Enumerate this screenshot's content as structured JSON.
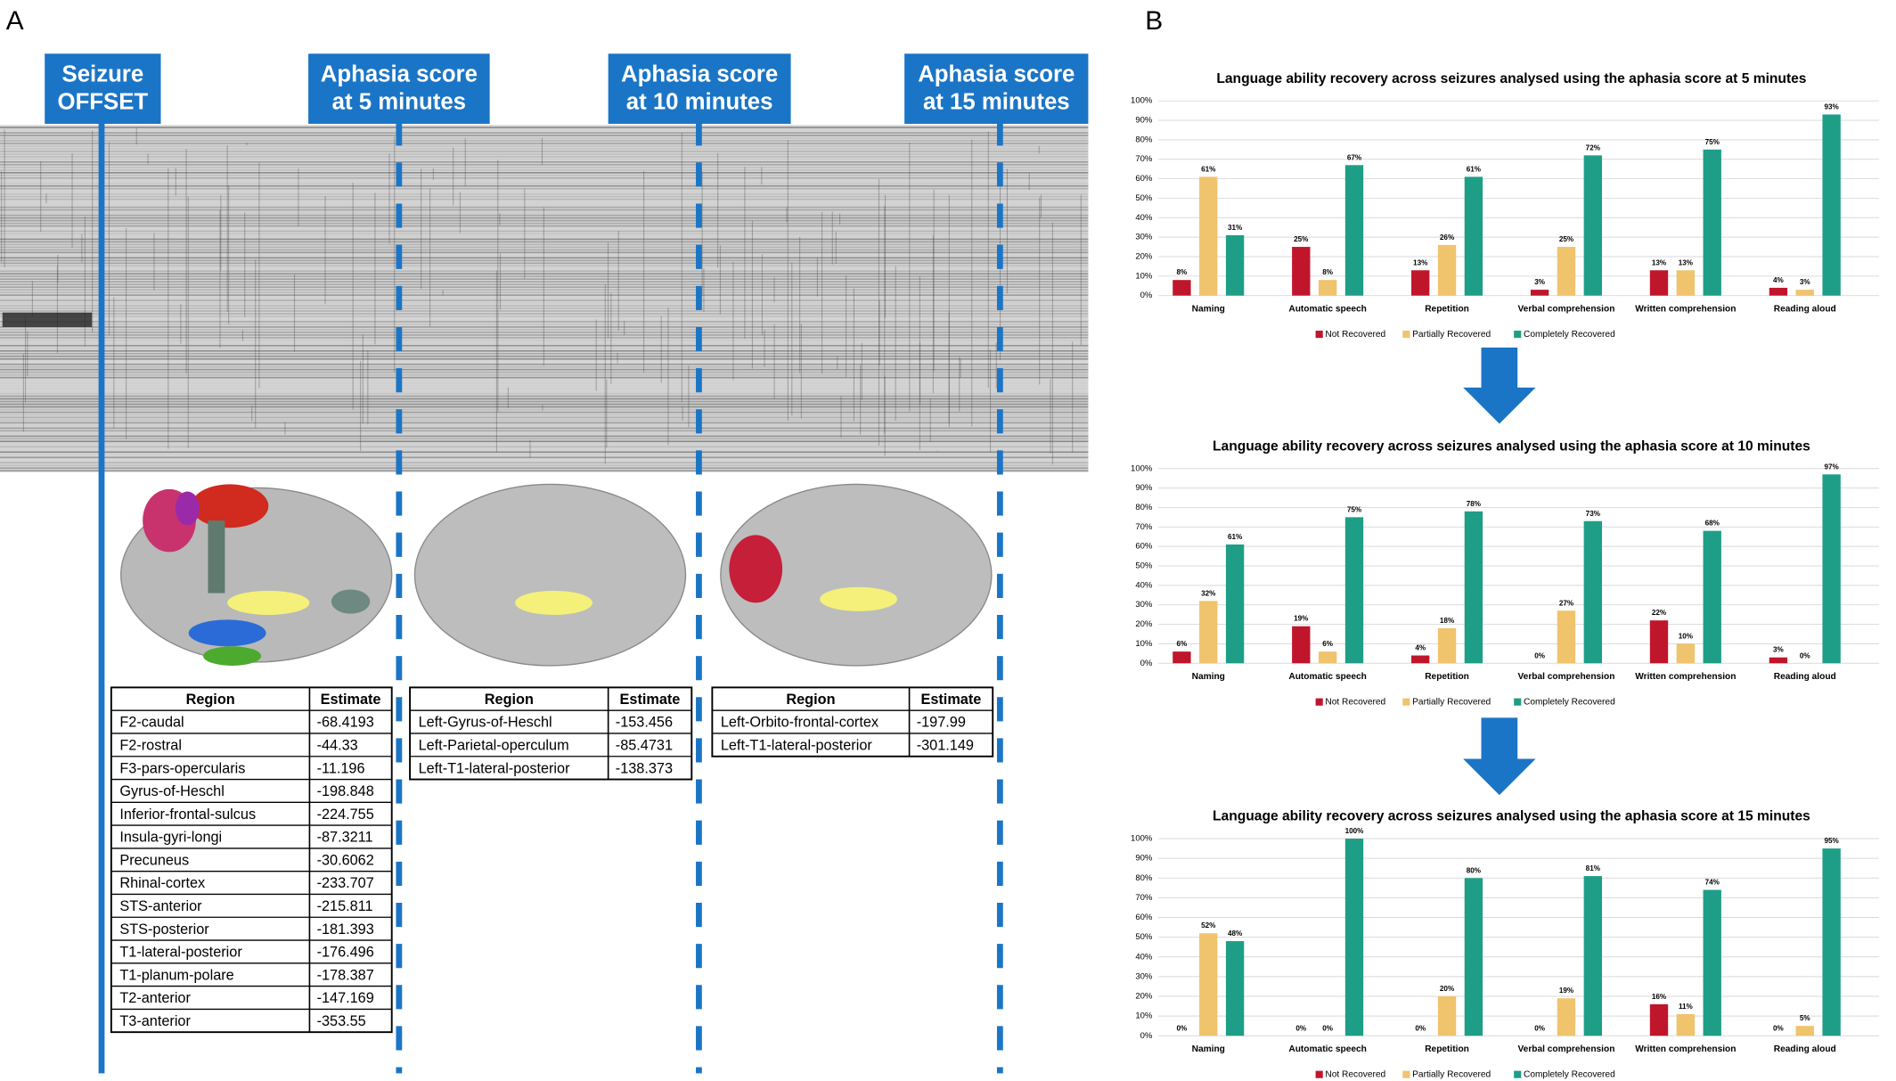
{
  "panel_labels": [
    "A",
    "B"
  ],
  "markers": [
    {
      "lines": [
        "Seizure",
        "OFFSET"
      ]
    },
    {
      "lines": [
        "Aphasia score",
        "at 5 minutes"
      ]
    },
    {
      "lines": [
        "Aphasia score",
        "at 10 minutes"
      ]
    },
    {
      "lines": [
        "Aphasia score",
        "at 15 minutes"
      ]
    }
  ],
  "tables": [
    {
      "header": [
        "Region",
        "Estimate"
      ],
      "rows": [
        [
          "F2-caudal",
          -68.4193
        ],
        [
          "F2-rostral",
          -44.33
        ],
        [
          "F3-pars-opercularis",
          -11.196
        ],
        [
          "Gyrus-of-Heschl",
          -198.848
        ],
        [
          "Inferior-frontal-sulcus",
          -224.755
        ],
        [
          "Insula-gyri-longi",
          -87.3211
        ],
        [
          "Precuneus",
          -30.6062
        ],
        [
          "Rhinal-cortex",
          -233.707
        ],
        [
          "STS-anterior",
          -215.811
        ],
        [
          "STS-posterior",
          -181.393
        ],
        [
          "T1-lateral-posterior",
          -176.496
        ],
        [
          "T1-planum-polare",
          -178.387
        ],
        [
          "T2-anterior",
          -147.169
        ],
        [
          "T3-anterior",
          -353.55
        ]
      ]
    },
    {
      "header": [
        "Region",
        "Estimate"
      ],
      "rows": [
        [
          "Left-Gyrus-of-Heschl",
          -153.456
        ],
        [
          "Left-Parietal-operculum",
          -85.4731
        ],
        [
          "Left-T1-lateral-posterior",
          -138.373
        ]
      ]
    },
    {
      "header": [
        "Region",
        "Estimate"
      ],
      "rows": [
        [
          "Left-Orbito-frontal-cortex",
          -197.99
        ],
        [
          "Left-T1-lateral-posterior",
          -301.149
        ]
      ]
    }
  ],
  "chart_data": [
    {
      "type": "bar",
      "title": "Language ability recovery across seizures analysed using the aphasia score at 5 minutes",
      "categories": [
        "Naming",
        "Automatic speech",
        "Repetition",
        "Verbal comprehension",
        "Written comprehension",
        "Reading aloud"
      ],
      "series": [
        {
          "name": "Not Recovered",
          "color": "#c0162b",
          "values": [
            8,
            25,
            13,
            3,
            13,
            4
          ],
          "value_labels": [
            "8%",
            "25%",
            "13%",
            "3%",
            "13%",
            "4%"
          ]
        },
        {
          "name": "Partially Recovered",
          "color": "#f0c36d",
          "values": [
            61,
            8,
            26,
            25,
            13,
            3
          ],
          "value_labels": [
            "61%",
            "8%",
            "26%",
            "25%",
            "13%",
            "3%"
          ]
        },
        {
          "name": "Completely Recovered",
          "color": "#1e9e87",
          "values": [
            31,
            67,
            61,
            72,
            75,
            93
          ],
          "value_labels": [
            "31%",
            "67%",
            "61%",
            "72%",
            "75%",
            "93%"
          ]
        }
      ],
      "ylim": [
        0,
        100
      ],
      "yticks": [
        {
          "value": 0,
          "label": "0%"
        },
        {
          "value": 10,
          "label": "10%"
        },
        {
          "value": 20,
          "label": "20%"
        },
        {
          "value": 30,
          "label": "30%"
        },
        {
          "value": 40,
          "label": "40%"
        },
        {
          "value": 50,
          "label": "50%"
        },
        {
          "value": 60,
          "label": "60%"
        },
        {
          "value": 70,
          "label": "70%"
        },
        {
          "value": 80,
          "label": "80%"
        },
        {
          "value": 90,
          "label": "90%"
        },
        {
          "value": 100,
          "label": "100%"
        }
      ],
      "grid": true,
      "legend": "bottom"
    },
    {
      "type": "bar",
      "title": "Language ability recovery across seizures analysed using the aphasia score at 10 minutes",
      "categories": [
        "Naming",
        "Automatic speech",
        "Repetition",
        "Verbal comprehension",
        "Written comprehension",
        "Reading aloud"
      ],
      "series": [
        {
          "name": "Not Recovered",
          "color": "#c0162b",
          "values": [
            6,
            19,
            4,
            0,
            22,
            3
          ],
          "value_labels": [
            "6%",
            "19%",
            "4%",
            "0%",
            "22%",
            "3%"
          ]
        },
        {
          "name": "Partially Recovered",
          "color": "#f0c36d",
          "values": [
            32,
            6,
            18,
            27,
            10,
            0
          ],
          "value_labels": [
            "32%",
            "6%",
            "18%",
            "27%",
            "10%",
            "0%"
          ]
        },
        {
          "name": "Completely Recovered",
          "color": "#1e9e87",
          "values": [
            61,
            75,
            78,
            73,
            68,
            97
          ],
          "value_labels": [
            "61%",
            "75%",
            "78%",
            "73%",
            "68%",
            "97%"
          ]
        }
      ],
      "ylim": [
        0,
        100
      ],
      "yticks": [
        {
          "value": 0,
          "label": "0%"
        },
        {
          "value": 10,
          "label": "10%"
        },
        {
          "value": 20,
          "label": "20%"
        },
        {
          "value": 30,
          "label": "30%"
        },
        {
          "value": 40,
          "label": "40%"
        },
        {
          "value": 50,
          "label": "50%"
        },
        {
          "value": 60,
          "label": "60%"
        },
        {
          "value": 70,
          "label": "70%"
        },
        {
          "value": 80,
          "label": "80%"
        },
        {
          "value": 90,
          "label": "90%"
        },
        {
          "value": 100,
          "label": "100%"
        }
      ],
      "grid": true,
      "legend": "bottom"
    },
    {
      "type": "bar",
      "title": "Language ability recovery across seizures analysed using the aphasia score at 15 minutes",
      "categories": [
        "Naming",
        "Automatic speech",
        "Repetition",
        "Verbal comprehension",
        "Written comprehension",
        "Reading aloud"
      ],
      "series": [
        {
          "name": "Not Recovered",
          "color": "#c0162b",
          "values": [
            0,
            0,
            0,
            0,
            16,
            0
          ],
          "value_labels": [
            "0%",
            "0%",
            "0%",
            "0%",
            "16%",
            "0%"
          ]
        },
        {
          "name": "Partially Recovered",
          "color": "#f0c36d",
          "values": [
            52,
            0,
            20,
            19,
            11,
            5
          ],
          "value_labels": [
            "52%",
            "0%",
            "20%",
            "19%",
            "11%",
            "5%"
          ]
        },
        {
          "name": "Completely Recovered",
          "color": "#1e9e87",
          "values": [
            48,
            100,
            80,
            81,
            74,
            95
          ],
          "value_labels": [
            "48%",
            "100%",
            "80%",
            "81%",
            "74%",
            "95%"
          ]
        }
      ],
      "ylim": [
        0,
        100
      ],
      "yticks": [
        {
          "value": 0,
          "label": "0%"
        },
        {
          "value": 10,
          "label": "10%"
        },
        {
          "value": 20,
          "label": "20%"
        },
        {
          "value": 30,
          "label": "30%"
        },
        {
          "value": 40,
          "label": "40%"
        },
        {
          "value": 50,
          "label": "50%"
        },
        {
          "value": 60,
          "label": "60%"
        },
        {
          "value": 70,
          "label": "70%"
        },
        {
          "value": 80,
          "label": "80%"
        },
        {
          "value": 90,
          "label": "90%"
        },
        {
          "value": 100,
          "label": "100%"
        }
      ],
      "grid": true,
      "legend": "bottom"
    }
  ]
}
